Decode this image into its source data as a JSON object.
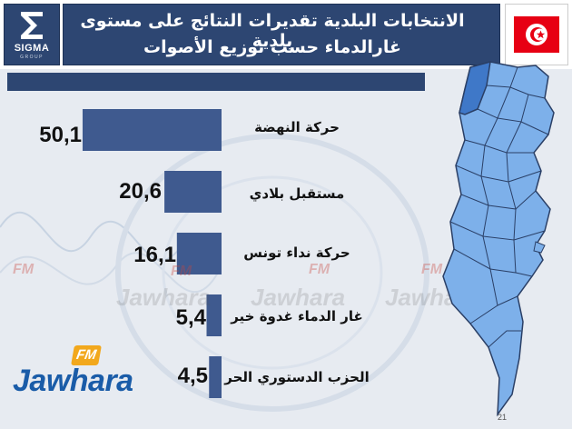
{
  "header": {
    "logo_text": "SIGMA",
    "logo_sub": "GROUP",
    "title_line1": "الانتخابات البلدية تقديرات النتائج على مستوى بلدية",
    "title_line2": "غارالدماء حسب توزيع الأصوات",
    "flag_colors": {
      "red": "#e70013",
      "white": "#ffffff"
    }
  },
  "chart_data": {
    "type": "bar",
    "orientation": "horizontal",
    "categories": [
      "حركة النهضة",
      "مستقبل بلادي",
      "حركة نداء تونس",
      "غار الدماء غدوة خير",
      "الحزب الدستوري الحر"
    ],
    "values": [
      50.1,
      20.6,
      16.1,
      5.4,
      4.5
    ],
    "value_labels": [
      "50,1",
      "20,6",
      "16,1",
      "5,4",
      "4,5"
    ],
    "bar_color": "#3f5a8f",
    "xlim": [
      0,
      55
    ]
  },
  "map": {
    "fill": "#7db0ea",
    "highlight_fill": "#3f78c8",
    "stroke": "#2a3f66",
    "highlighted_region": "Ghardimaou"
  },
  "branding": {
    "fm_badge": "FM",
    "name": "Jawhara",
    "name_color": "#1a5ca8",
    "badge_color": "#f2a81d"
  },
  "watermarks": {
    "fm": "FM",
    "name": "Jawhara"
  },
  "footer": {
    "page_number": "21"
  }
}
